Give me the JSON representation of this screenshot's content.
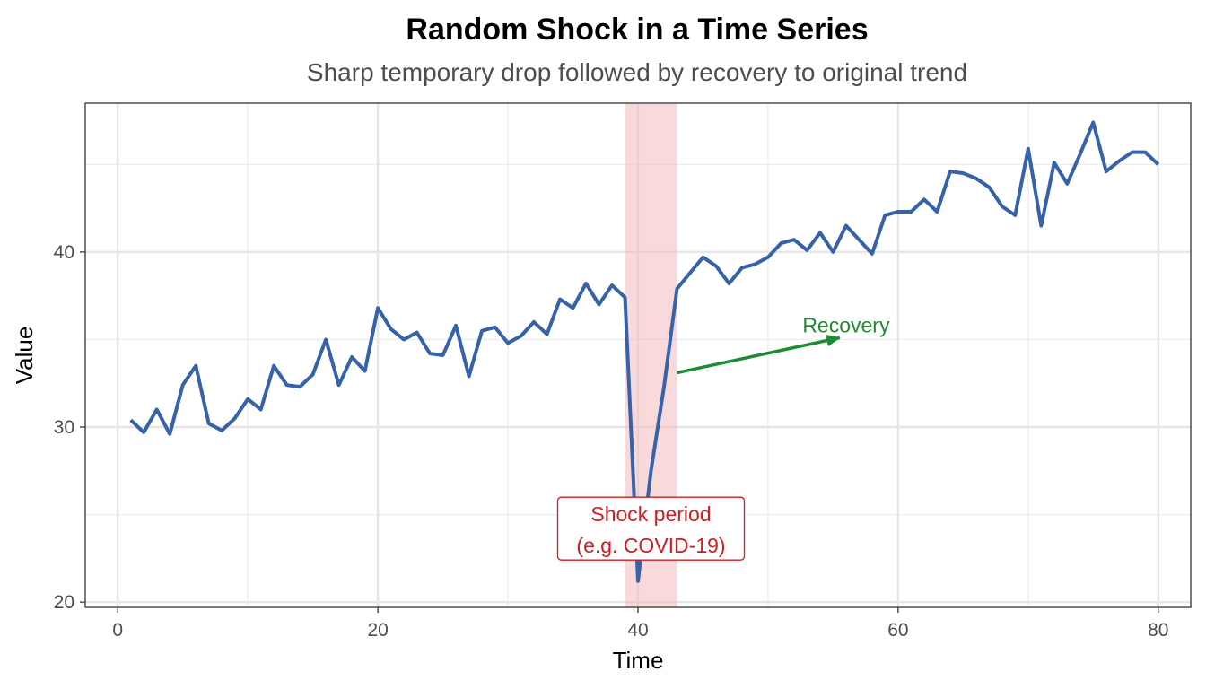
{
  "chart_data": {
    "type": "line",
    "title": "Random Shock in a Time Series",
    "subtitle": "Sharp temporary drop followed by recovery to original trend",
    "xlabel": "Time",
    "ylabel": "Value",
    "xlim": [
      -2.5,
      82.5
    ],
    "ylim": [
      19.7,
      48.5
    ],
    "x_ticks": [
      0,
      20,
      40,
      60,
      80
    ],
    "x_minor_ticks": [
      10,
      30,
      50,
      70
    ],
    "y_ticks": [
      20,
      30,
      40
    ],
    "y_minor_ticks": [
      25,
      35,
      45
    ],
    "grid": true,
    "series": [
      {
        "color": "#3562a8",
        "x": [
          1,
          2,
          3,
          4,
          5,
          6,
          7,
          8,
          9,
          10,
          11,
          12,
          13,
          14,
          15,
          16,
          17,
          18,
          19,
          20,
          21,
          22,
          23,
          24,
          25,
          26,
          27,
          28,
          29,
          30,
          31,
          32,
          33,
          34,
          35,
          36,
          37,
          38,
          39,
          40,
          41,
          42,
          43,
          44,
          45,
          46,
          47,
          48,
          49,
          50,
          51,
          52,
          53,
          54,
          55,
          56,
          57,
          58,
          59,
          60,
          61,
          62,
          63,
          64,
          65,
          66,
          67,
          68,
          69,
          70,
          71,
          72,
          73,
          74,
          75,
          76,
          77,
          78,
          79,
          80
        ],
        "values": [
          30.4,
          29.7,
          31.0,
          29.6,
          32.4,
          33.5,
          30.2,
          29.8,
          30.5,
          31.6,
          31.0,
          33.5,
          32.4,
          32.3,
          33.0,
          35.0,
          32.4,
          34.0,
          33.2,
          36.8,
          35.6,
          35.0,
          35.4,
          34.2,
          34.1,
          35.8,
          32.9,
          35.5,
          35.7,
          34.8,
          35.2,
          36.0,
          35.3,
          37.3,
          36.8,
          38.2,
          37.0,
          38.1,
          37.4,
          21.2,
          27.5,
          32.3,
          37.9,
          38.8,
          39.7,
          39.2,
          38.2,
          39.1,
          39.3,
          39.7,
          40.5,
          40.7,
          40.1,
          41.1,
          40.0,
          41.5,
          40.7,
          39.9,
          42.1,
          42.3,
          42.3,
          43.0,
          42.3,
          44.6,
          44.5,
          44.2,
          43.7,
          42.6,
          42.1,
          45.9,
          41.5,
          45.1,
          43.9,
          45.6,
          47.4,
          44.6,
          45.2,
          45.7,
          45.7,
          45.0
        ]
      }
    ],
    "shock_band": {
      "x_start": 39,
      "x_end": 43,
      "color": "#f2b6bb"
    },
    "annotations": {
      "recovery": {
        "text": "Recovery",
        "color": "#1e8b35",
        "text_x": 56,
        "text_y": 35.4,
        "arrow_from": [
          43,
          33.1
        ],
        "arrow_to": [
          55.5,
          35.1
        ]
      },
      "shock": {
        "line1": "Shock period",
        "line2": "(e.g. COVID-19)",
        "color": "#cc1f24",
        "x": 41,
        "y": 24.2
      }
    }
  }
}
